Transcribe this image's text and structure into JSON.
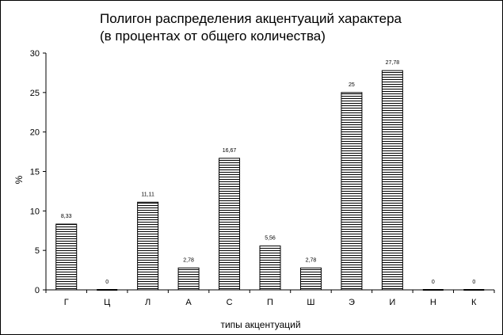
{
  "chart_data": {
    "type": "bar",
    "title_lines": [
      "Полигон распределения акцентуаций характера",
      "(в процентах от общего количества)"
    ],
    "xlabel": "типы акцентуаций",
    "ylabel": "%",
    "categories": [
      "Г",
      "Ц",
      "Л",
      "А",
      "С",
      "П",
      "Ш",
      "Э",
      "И",
      "Н",
      "К"
    ],
    "values": [
      8.33,
      0,
      11.11,
      2.78,
      16.67,
      5.56,
      2.78,
      25,
      27.78,
      0,
      0
    ],
    "data_labels": [
      "8,33",
      "0",
      "11,11",
      "2,78",
      "16,67",
      "5,56",
      "2,78",
      "25",
      "27,78",
      "0",
      "0"
    ],
    "ylim": [
      0,
      30
    ],
    "yticks": [
      0,
      5,
      10,
      15,
      20,
      25,
      30
    ],
    "grid": false,
    "legend": "none",
    "bar_fill": "horizontal-hatch",
    "colors": {
      "bar_line": "#000000",
      "bar_bg": "#ffffff",
      "axis": "#000000",
      "frame": "#000000"
    }
  }
}
